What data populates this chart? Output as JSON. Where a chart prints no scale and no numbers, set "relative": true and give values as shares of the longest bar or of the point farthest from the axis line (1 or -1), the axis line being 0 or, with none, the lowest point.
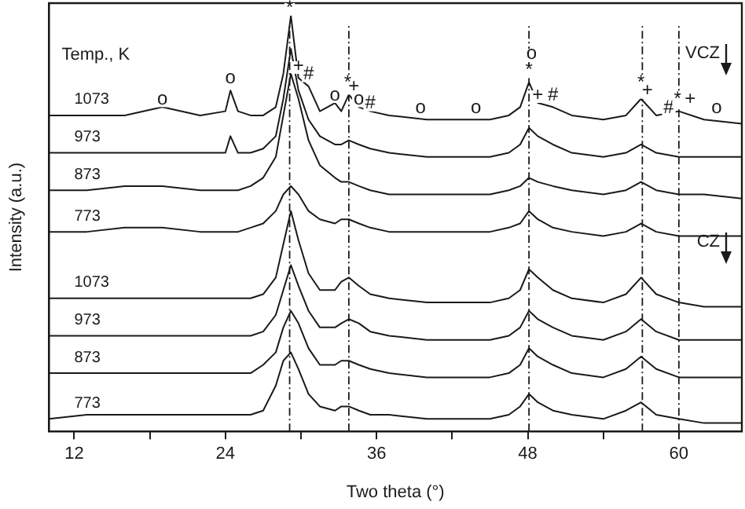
{
  "chart_data": {
    "type": "line",
    "relative": true,
    "xlabel": "Two theta (°)",
    "ylabel": "Intensity (a.u.)",
    "tick_labels": "x",
    "marker": "none",
    "line_style": "solid",
    "xlim": [
      10,
      65
    ],
    "xticks": [
      12,
      {
        "value": 18,
        "label": null
      },
      24,
      {
        "value": 30,
        "label": null
      },
      36,
      {
        "value": 42,
        "label": null
      },
      48,
      {
        "value": 54,
        "label": null
      },
      60
    ],
    "x": [
      10,
      13,
      16,
      19,
      22,
      24,
      24.4,
      25,
      26,
      27,
      28,
      28.6,
      29.2,
      29.8,
      30.6,
      31.5,
      32.7,
      33.2,
      33.8,
      34.6,
      35.5,
      37,
      40,
      43,
      45,
      46.5,
      47.4,
      48.1,
      48.8,
      50,
      51.5,
      54,
      55.8,
      57,
      58.2,
      60,
      62,
      65
    ],
    "series": [
      {
        "name": "1073",
        "color": "#1a1a1a",
        "values": [
          0.76,
          0.76,
          0.76,
          0.78,
          0.76,
          0.77,
          0.82,
          0.77,
          0.76,
          0.76,
          0.78,
          0.86,
          1.0,
          0.85,
          0.83,
          0.77,
          0.79,
          0.77,
          0.81,
          0.78,
          0.77,
          0.76,
          0.75,
          0.75,
          0.75,
          0.76,
          0.78,
          0.84,
          0.79,
          0.78,
          0.76,
          0.75,
          0.76,
          0.8,
          0.76,
          0.77,
          0.75,
          0.74
        ]
      },
      {
        "name": "973",
        "color": "#1a1a1a",
        "values": [
          0.67,
          0.67,
          0.67,
          0.67,
          0.67,
          0.67,
          0.71,
          0.67,
          0.67,
          0.68,
          0.71,
          0.8,
          0.92,
          0.82,
          0.75,
          0.71,
          0.69,
          0.69,
          0.7,
          0.69,
          0.68,
          0.67,
          0.66,
          0.66,
          0.66,
          0.67,
          0.69,
          0.73,
          0.71,
          0.69,
          0.67,
          0.66,
          0.67,
          0.69,
          0.67,
          0.66,
          0.66,
          0.66
        ]
      },
      {
        "name": "873",
        "color": "#1a1a1a",
        "values": [
          0.58,
          0.58,
          0.59,
          0.59,
          0.58,
          0.58,
          0.58,
          0.58,
          0.59,
          0.61,
          0.66,
          0.76,
          0.86,
          0.8,
          0.7,
          0.64,
          0.61,
          0.6,
          0.6,
          0.59,
          0.58,
          0.57,
          0.57,
          0.57,
          0.57,
          0.58,
          0.59,
          0.61,
          0.6,
          0.59,
          0.58,
          0.57,
          0.58,
          0.6,
          0.58,
          0.57,
          0.57,
          0.56
        ]
      },
      {
        "name": "773",
        "color": "#1a1a1a",
        "values": [
          0.48,
          0.48,
          0.49,
          0.49,
          0.48,
          0.48,
          0.48,
          0.48,
          0.49,
          0.5,
          0.53,
          0.57,
          0.59,
          0.57,
          0.53,
          0.51,
          0.5,
          0.51,
          0.51,
          0.5,
          0.49,
          0.48,
          0.48,
          0.48,
          0.48,
          0.49,
          0.5,
          0.53,
          0.51,
          0.49,
          0.48,
          0.47,
          0.48,
          0.5,
          0.48,
          0.47,
          0.47,
          0.47
        ]
      },
      {
        "name": "1073",
        "color": "#1a1a1a",
        "values": [
          0.32,
          0.32,
          0.32,
          0.32,
          0.32,
          0.32,
          0.32,
          0.32,
          0.32,
          0.33,
          0.37,
          0.45,
          0.53,
          0.46,
          0.38,
          0.34,
          0.34,
          0.36,
          0.37,
          0.35,
          0.33,
          0.32,
          0.31,
          0.31,
          0.31,
          0.32,
          0.34,
          0.39,
          0.37,
          0.34,
          0.32,
          0.31,
          0.33,
          0.37,
          0.33,
          0.31,
          0.3,
          0.3
        ]
      },
      {
        "name": "973",
        "color": "#1a1a1a",
        "values": [
          0.23,
          0.23,
          0.23,
          0.23,
          0.23,
          0.23,
          0.23,
          0.23,
          0.23,
          0.24,
          0.28,
          0.34,
          0.4,
          0.35,
          0.29,
          0.25,
          0.25,
          0.26,
          0.27,
          0.26,
          0.24,
          0.23,
          0.22,
          0.22,
          0.22,
          0.23,
          0.25,
          0.29,
          0.27,
          0.25,
          0.23,
          0.22,
          0.24,
          0.27,
          0.24,
          0.22,
          0.22,
          0.22
        ]
      },
      {
        "name": "873",
        "color": "#1a1a1a",
        "values": [
          0.14,
          0.14,
          0.14,
          0.14,
          0.14,
          0.14,
          0.14,
          0.14,
          0.14,
          0.16,
          0.19,
          0.25,
          0.29,
          0.26,
          0.2,
          0.16,
          0.16,
          0.17,
          0.17,
          0.16,
          0.15,
          0.14,
          0.13,
          0.13,
          0.13,
          0.14,
          0.16,
          0.2,
          0.18,
          0.16,
          0.14,
          0.13,
          0.15,
          0.18,
          0.15,
          0.13,
          0.13,
          0.13
        ]
      },
      {
        "name": "773",
        "color": "#1a1a1a",
        "values": [
          0.03,
          0.04,
          0.04,
          0.04,
          0.04,
          0.04,
          0.04,
          0.04,
          0.04,
          0.05,
          0.11,
          0.17,
          0.19,
          0.15,
          0.09,
          0.06,
          0.05,
          0.06,
          0.06,
          0.05,
          0.04,
          0.04,
          0.03,
          0.03,
          0.03,
          0.04,
          0.06,
          0.09,
          0.07,
          0.05,
          0.04,
          0.03,
          0.05,
          0.07,
          0.04,
          0.03,
          0.02,
          0.02
        ]
      }
    ],
    "ref_lines": [
      {
        "axis": "x",
        "value": 29.1,
        "line_style": "dashed",
        "color": "#1a1a1a"
      },
      {
        "axis": "x",
        "value": 33.8,
        "line_style": "dashed",
        "color": "#1a1a1a"
      },
      {
        "axis": "x",
        "value": 48.1,
        "line_style": "dashed",
        "color": "#1a1a1a"
      },
      {
        "axis": "x",
        "value": 57.1,
        "line_style": "dashed",
        "color": "#1a1a1a"
      },
      {
        "axis": "x",
        "value": 60,
        "line_style": "dashed",
        "color": "#1a1a1a"
      }
    ],
    "annotations": [
      "Temp., K",
      "VCZ",
      "CZ",
      {
        "text": "o",
        "x": 19,
        "y": 0.78
      },
      {
        "text": "o",
        "x": 24.4,
        "y": 0.83
      },
      {
        "text": "*",
        "x": 29.1,
        "y": 1.0
      },
      {
        "text": "+",
        "x": 29.8,
        "y": 0.86
      },
      {
        "text": "#",
        "x": 30.6,
        "y": 0.84
      },
      {
        "text": "o",
        "x": 32.7,
        "y": 0.79
      },
      {
        "text": "*",
        "x": 33.7,
        "y": 0.82
      },
      {
        "text": "+",
        "x": 34.2,
        "y": 0.81
      },
      {
        "text": "o",
        "x": 34.6,
        "y": 0.78
      },
      {
        "text": "#",
        "x": 35.5,
        "y": 0.77
      },
      {
        "text": "o",
        "x": 39.5,
        "y": 0.76
      },
      {
        "text": "o",
        "x": 43.9,
        "y": 0.76
      },
      {
        "text": "o",
        "x": 48.3,
        "y": 0.89
      },
      {
        "text": "*",
        "x": 48.1,
        "y": 0.85
      },
      {
        "text": "+",
        "x": 48.8,
        "y": 0.79
      },
      {
        "text": "#",
        "x": 50.0,
        "y": 0.79
      },
      {
        "text": "*",
        "x": 57.0,
        "y": 0.82
      },
      {
        "text": "+",
        "x": 57.5,
        "y": 0.8
      },
      {
        "text": "#",
        "x": 59.2,
        "y": 0.76
      },
      {
        "text": "*",
        "x": 59.9,
        "y": 0.78
      },
      {
        "text": "+",
        "x": 60.9,
        "y": 0.78
      },
      {
        "text": "o",
        "x": 63.0,
        "y": 0.76
      }
    ]
  }
}
